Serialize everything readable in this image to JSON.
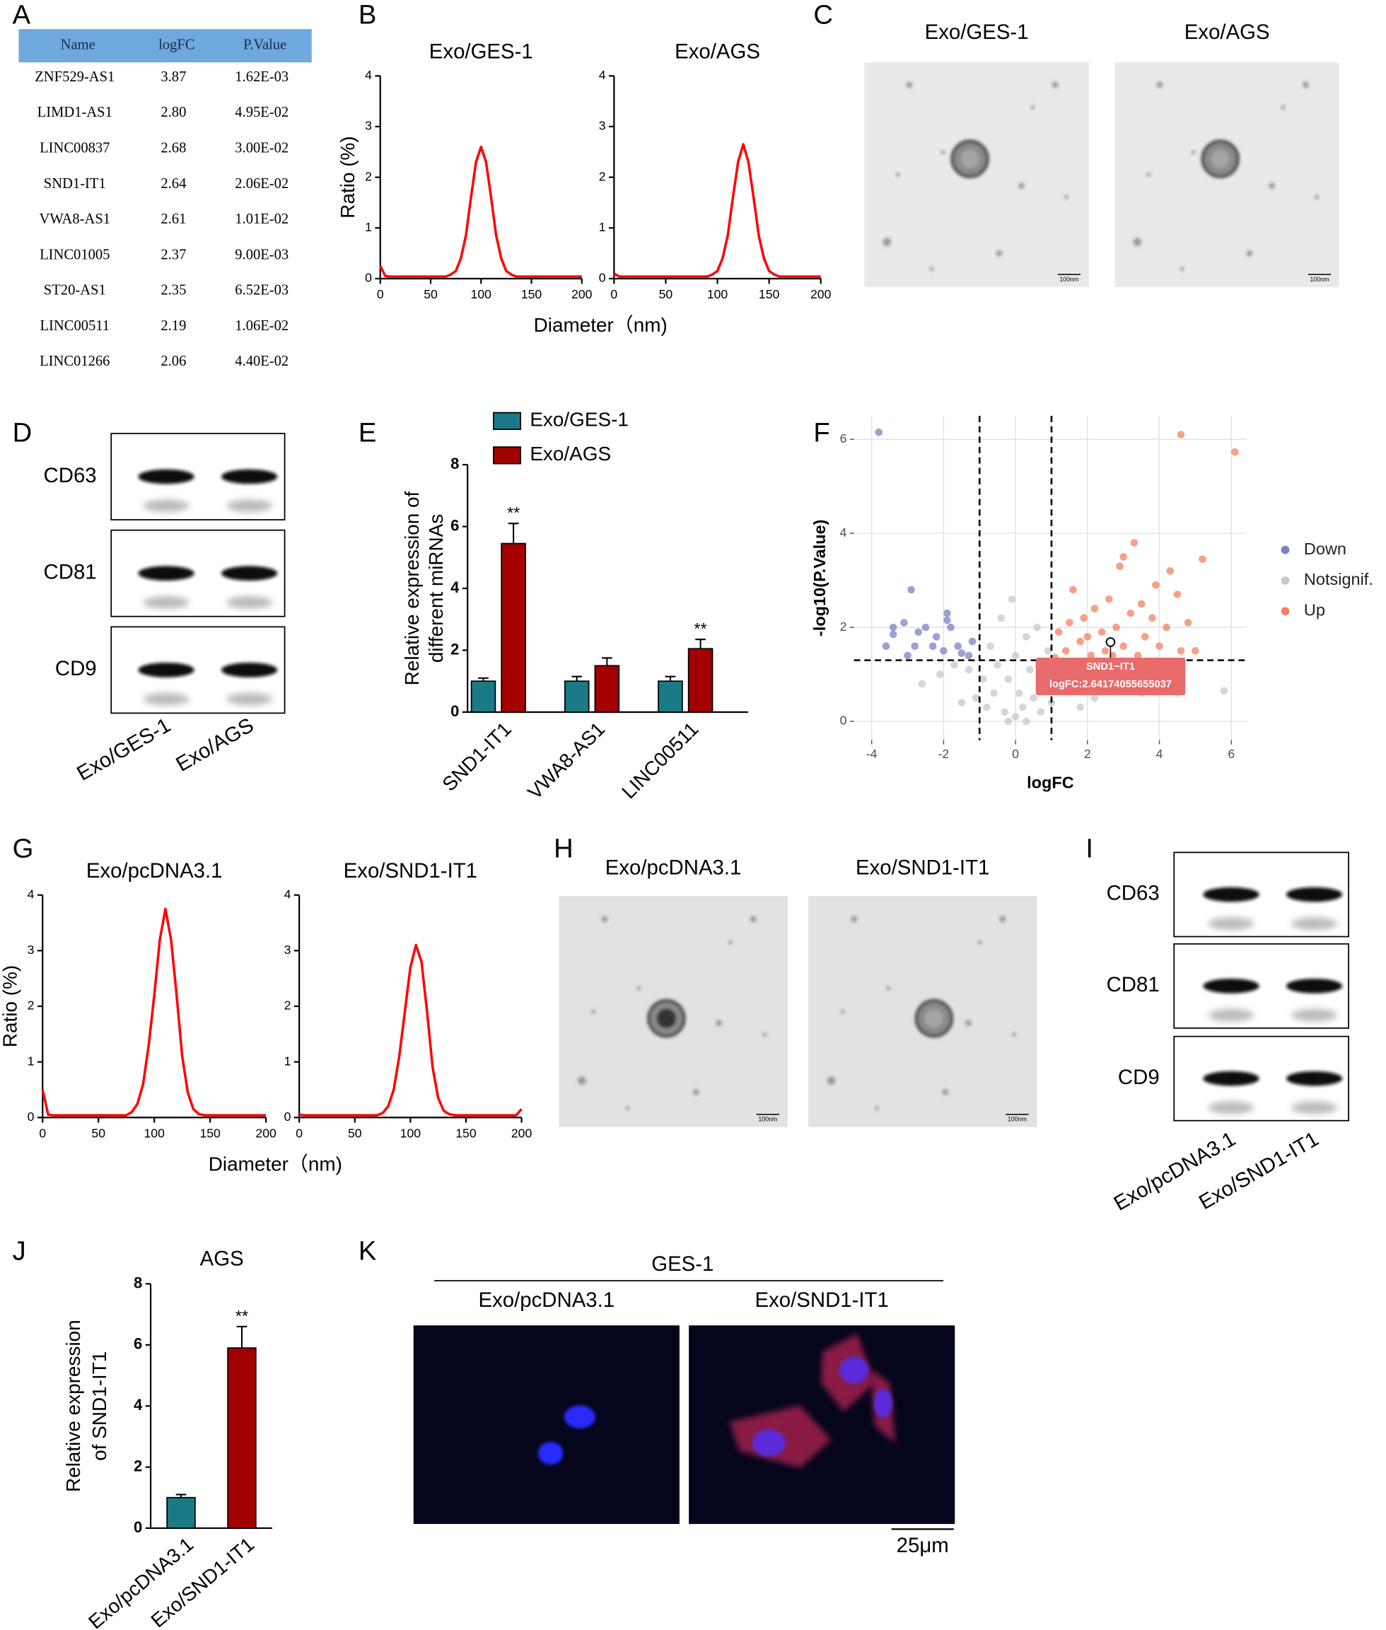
{
  "panel_labels": [
    "A",
    "B",
    "C",
    "D",
    "E",
    "F",
    "G",
    "H",
    "I",
    "J",
    "K"
  ],
  "table": {
    "header": [
      "Name",
      "logFC",
      "P.Value"
    ],
    "rows": [
      [
        "ZNF529-AS1",
        "3.87",
        "1.62E-03"
      ],
      [
        "LIMD1-AS1",
        "2.80",
        "4.95E-02"
      ],
      [
        "LINC00837",
        "2.68",
        "3.00E-02"
      ],
      [
        "SND1-IT1",
        "2.64",
        "2.06E-02"
      ],
      [
        "VWA8-AS1",
        "2.61",
        "1.01E-02"
      ],
      [
        "LINC01005",
        "2.37",
        "9.00E-03"
      ],
      [
        "ST20-AS1",
        "2.35",
        "6.52E-03"
      ],
      [
        "LINC00511",
        "2.19",
        "1.06E-02"
      ],
      [
        "LINC01266",
        "2.06",
        "4.40E-02"
      ]
    ]
  },
  "chart_data": [
    {
      "type": "line",
      "title": "Exo/GES-1",
      "ylabel": "Ratio (%)",
      "xlabel": "Diameter（nm)",
      "color": "#ff0000",
      "x": [
        0,
        5,
        10,
        15,
        20,
        25,
        30,
        35,
        40,
        45,
        50,
        55,
        60,
        65,
        70,
        75,
        80,
        85,
        90,
        95,
        100,
        105,
        110,
        115,
        120,
        125,
        130,
        135,
        140,
        145,
        150,
        155,
        160,
        165,
        170,
        175,
        180,
        185,
        190,
        195,
        200
      ],
      "values": [
        0.25,
        0.05,
        0.04,
        0.04,
        0.04,
        0.04,
        0.04,
        0.04,
        0.04,
        0.04,
        0.04,
        0.04,
        0.04,
        0.04,
        0.08,
        0.15,
        0.4,
        0.85,
        1.6,
        2.3,
        2.6,
        2.3,
        1.6,
        0.85,
        0.4,
        0.15,
        0.08,
        0.04,
        0.04,
        0.04,
        0.04,
        0.04,
        0.04,
        0.04,
        0.04,
        0.04,
        0.04,
        0.04,
        0.04,
        0.04,
        0.04
      ],
      "xlim": [
        0,
        200
      ],
      "xticks": [
        0,
        50,
        100,
        150,
        200
      ],
      "ylim": [
        0,
        4
      ],
      "yticks": [
        0,
        1,
        2,
        3,
        4
      ]
    },
    {
      "type": "line",
      "title": "Exo/AGS",
      "color": "#ff0000",
      "x": [
        0,
        5,
        10,
        15,
        20,
        25,
        30,
        35,
        40,
        45,
        50,
        55,
        60,
        65,
        70,
        75,
        80,
        85,
        90,
        95,
        100,
        105,
        110,
        115,
        120,
        125,
        130,
        135,
        140,
        145,
        150,
        155,
        160,
        165,
        170,
        175,
        180,
        185,
        190,
        195,
        200
      ],
      "values": [
        0.1,
        0.04,
        0.04,
        0.04,
        0.04,
        0.04,
        0.04,
        0.04,
        0.04,
        0.04,
        0.04,
        0.04,
        0.04,
        0.04,
        0.04,
        0.04,
        0.04,
        0.04,
        0.04,
        0.08,
        0.15,
        0.4,
        0.85,
        1.6,
        2.3,
        2.65,
        2.3,
        1.6,
        0.85,
        0.4,
        0.15,
        0.08,
        0.04,
        0.04,
        0.04,
        0.04,
        0.04,
        0.04,
        0.04,
        0.04,
        0.04
      ],
      "xlim": [
        0,
        200
      ],
      "xticks": [
        0,
        50,
        100,
        150,
        200
      ],
      "ylim": [
        0,
        4
      ],
      "yticks": [
        0,
        1,
        2,
        3,
        4
      ]
    },
    {
      "type": "bar",
      "ylabel": [
        "Relative expression of",
        "different miRNAs"
      ],
      "legend": "top",
      "categories": [
        "SND1-IT1",
        "VWA8-AS1",
        "LINC00511"
      ],
      "series": [
        {
          "name": "Exo/GES-1",
          "color": "#1b7a87",
          "values": [
            1,
            1,
            1
          ],
          "errors": [
            0.1,
            0.15,
            0.15
          ]
        },
        {
          "name": "Exo/AGS",
          "color": "#a30000",
          "values": [
            5.45,
            1.5,
            2.05
          ],
          "errors": [
            0.65,
            0.25,
            0.3
          ]
        }
      ],
      "significance": [
        "**",
        null,
        "**"
      ],
      "ylim": [
        0,
        8
      ],
      "yticks": [
        0,
        2,
        4,
        6,
        8
      ]
    },
    {
      "type": "scatter",
      "xlabel": "logFC",
      "ylabel": "-log10(P.Value)",
      "legend": "right",
      "grid": true,
      "series": [
        {
          "name": "Down",
          "color": "#7b80c7",
          "x": [
            -3.8,
            -2.9,
            -3.4,
            -3.4,
            -3.6,
            -3.1,
            -2.7,
            -2.5,
            -2.2,
            -1.9,
            -1.8,
            -1.6,
            -2.0,
            -1.5,
            -1.3,
            -2.3,
            -1.2,
            -2.8,
            -3.0,
            -1.9
          ],
          "values": [
            6.15,
            2.8,
            2.0,
            1.85,
            1.6,
            2.1,
            1.9,
            2.0,
            1.8,
            2.3,
            2.0,
            1.6,
            1.5,
            1.45,
            1.4,
            1.6,
            1.7,
            1.6,
            1.4,
            2.15
          ]
        },
        {
          "name": "Notsignif.",
          "color": "#c8c8c8",
          "x": [
            0,
            0.2,
            -0.3,
            0.5,
            -0.6,
            0.8,
            -0.9,
            1.2,
            -1.3,
            1.6,
            -1.7,
            0.1,
            -0.2,
            0.4,
            -0.5,
            0.7,
            -0.8,
            1.0,
            -1.1,
            1.4,
            2.0,
            2.5,
            3.0,
            4.5,
            5.8,
            3.5,
            -0.1,
            0.3,
            -0.4,
            0.6,
            0.9,
            -0.7,
            0.0,
            -2.1,
            -2.6,
            2.2,
            1.8,
            -1.5,
            0.3,
            -0.2
          ],
          "values": [
            0.1,
            0.3,
            0.2,
            0.5,
            0.6,
            0.8,
            0.9,
            1.0,
            1.1,
            1.2,
            1.2,
            0.6,
            0.9,
            1.1,
            1.2,
            0.2,
            0.3,
            0.4,
            0.5,
            0.7,
            1.1,
            0.9,
            1.0,
            0.6,
            0.65,
            0.6,
            2.6,
            1.8,
            2.2,
            2.0,
            1.5,
            1.6,
            1.4,
            1.0,
            0.8,
            0.5,
            0.3,
            0.4,
            0.0,
            0.0
          ]
        },
        {
          "name": "Up",
          "color": "#f0825f",
          "x": [
            4.6,
            6.1,
            5.2,
            3.3,
            3.0,
            2.9,
            4.3,
            3.9,
            4.5,
            2.6,
            2.2,
            1.9,
            1.5,
            1.2,
            1.4,
            1.8,
            2.4,
            2.8,
            3.2,
            3.5,
            3.6,
            4.0,
            4.8,
            5.0,
            2.1,
            1.1,
            3.0,
            2.5,
            3.8,
            4.2,
            1.6,
            2.7,
            2.0,
            3.4,
            4.6
          ],
          "values": [
            6.1,
            5.73,
            3.45,
            3.8,
            3.5,
            3.3,
            3.2,
            2.9,
            2.7,
            2.6,
            2.4,
            2.2,
            2.1,
            1.9,
            1.5,
            1.7,
            1.9,
            2.0,
            2.3,
            2.5,
            1.8,
            1.6,
            2.1,
            1.5,
            1.4,
            1.35,
            1.6,
            1.5,
            2.2,
            2.0,
            2.8,
            1.4,
            1.8,
            1.4,
            1.5
          ]
        }
      ],
      "thresholds": {
        "x": [
          -1,
          1
        ],
        "y": 1.3
      },
      "annotation": {
        "label": "SND1−IT1",
        "text": "logFC:2.64174055655037",
        "x": 2.64174055655037,
        "y": 1.686
      },
      "xlim": [
        -4.49,
        6.43
      ],
      "xticks": [
        -4,
        -2,
        0,
        2,
        4,
        6
      ],
      "ylim": [
        -0.4,
        6.5
      ],
      "yticks": [
        0,
        2,
        4,
        6
      ]
    },
    {
      "type": "line",
      "title": "Exo/pcDNA3.1",
      "ylabel": "Ratio (%)",
      "xlabel": "Diameter（nm)",
      "color": "#ff0000",
      "x": [
        0,
        5,
        10,
        15,
        20,
        25,
        30,
        35,
        40,
        45,
        50,
        55,
        60,
        65,
        70,
        75,
        80,
        85,
        90,
        95,
        100,
        105,
        110,
        115,
        120,
        125,
        130,
        135,
        140,
        145,
        150,
        155,
        160,
        165,
        170,
        175,
        180,
        185,
        190,
        195,
        200
      ],
      "values": [
        0.5,
        0.05,
        0.04,
        0.04,
        0.04,
        0.04,
        0.04,
        0.04,
        0.04,
        0.04,
        0.04,
        0.04,
        0.04,
        0.04,
        0.04,
        0.04,
        0.1,
        0.25,
        0.6,
        1.3,
        2.2,
        3.2,
        3.75,
        3.2,
        2.2,
        1.1,
        0.45,
        0.15,
        0.06,
        0.04,
        0.04,
        0.04,
        0.04,
        0.04,
        0.04,
        0.04,
        0.04,
        0.04,
        0.04,
        0.04,
        0.04
      ],
      "xlim": [
        0,
        200
      ],
      "xticks": [
        0,
        50,
        100,
        150,
        200
      ],
      "ylim": [
        0,
        4
      ],
      "yticks": [
        0,
        1,
        2,
        3,
        4
      ]
    },
    {
      "type": "line",
      "title": "Exo/SND1-IT1",
      "color": "#ff0000",
      "x": [
        0,
        5,
        10,
        15,
        20,
        25,
        30,
        35,
        40,
        45,
        50,
        55,
        60,
        65,
        70,
        75,
        80,
        85,
        90,
        95,
        100,
        105,
        110,
        115,
        120,
        125,
        130,
        135,
        140,
        145,
        150,
        155,
        160,
        165,
        170,
        175,
        180,
        185,
        190,
        195,
        200
      ],
      "values": [
        0.05,
        0.04,
        0.04,
        0.04,
        0.04,
        0.04,
        0.04,
        0.04,
        0.04,
        0.04,
        0.04,
        0.04,
        0.04,
        0.04,
        0.04,
        0.08,
        0.2,
        0.5,
        1.1,
        1.9,
        2.7,
        3.1,
        2.8,
        1.9,
        0.9,
        0.35,
        0.12,
        0.06,
        0.04,
        0.04,
        0.04,
        0.04,
        0.04,
        0.04,
        0.04,
        0.04,
        0.04,
        0.04,
        0.04,
        0.04,
        0.15
      ],
      "xlim": [
        0,
        200
      ],
      "xticks": [
        0,
        50,
        100,
        150,
        200
      ],
      "ylim": [
        0,
        4
      ],
      "yticks": [
        0,
        1,
        2,
        3,
        4
      ]
    },
    {
      "type": "bar",
      "title": "AGS",
      "ylabel": [
        "Relative expression",
        "of  SND1-IT1"
      ],
      "categories": [
        "Exo/pcDNA3.1",
        "Exo/SND1-IT1"
      ],
      "values": [
        1,
        5.9
      ],
      "errors": [
        0.1,
        0.7
      ],
      "colors": [
        "#1b7a87",
        "#a30000"
      ],
      "significance": [
        null,
        "**"
      ],
      "ylim": [
        0,
        8
      ],
      "yticks": [
        0,
        2,
        4,
        6,
        8
      ]
    }
  ],
  "micrographs": [
    {
      "titles": [
        "Exo/GES-1",
        "Exo/AGS"
      ],
      "scale_label": "100nm"
    },
    {
      "titles": [
        "Exo/pcDNA3.1",
        "Exo/SND1-IT1"
      ],
      "scale_label": "100nm"
    }
  ],
  "blots": [
    {
      "rows": [
        "CD63",
        "CD81",
        "CD9"
      ],
      "lanes": [
        "Exo/GES-1",
        "Exo/AGS"
      ]
    },
    {
      "rows": [
        "CD63",
        "CD81",
        "CD9"
      ],
      "lanes": [
        "Exo/pcDNA3.1",
        "Exo/SND1-IT1"
      ]
    }
  ],
  "fluorescence": {
    "group": "GES-1",
    "titles": [
      "Exo/pcDNA3.1",
      "Exo/SND1-IT1"
    ],
    "scale_label": "25μm"
  }
}
